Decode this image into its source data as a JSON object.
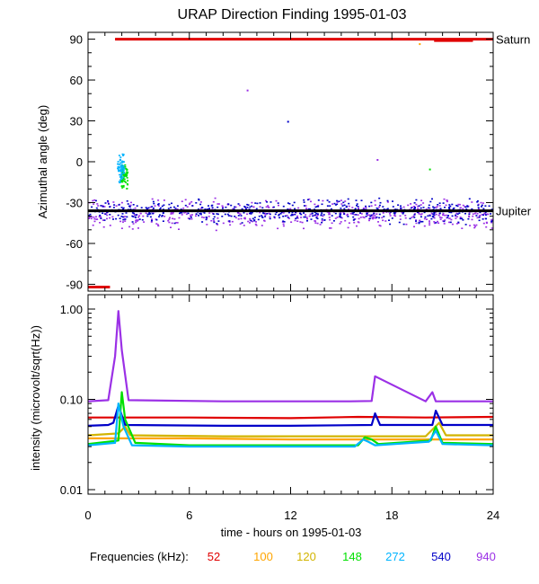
{
  "title": "URAP Direction Finding  1995-01-03",
  "colors": {
    "f52": "#e00000",
    "f100": "#ffa500",
    "f120": "#d2b400",
    "f148": "#00e000",
    "f272": "#00b4ff",
    "f540": "#0000c8",
    "f940": "#9b30e6"
  },
  "chart_data": [
    {
      "type": "scatter",
      "ylabel": "Azimuthal angle (deg)",
      "xlim": [
        0,
        24
      ],
      "ylim": [
        -95,
        95
      ],
      "yticks": [
        "90",
        "60",
        "30",
        "0",
        "-30",
        "-60",
        "-90"
      ],
      "reference_lines": [
        {
          "name": "Saturn",
          "y": 90,
          "x": [
            1.6,
            24
          ],
          "color": "#e00000"
        },
        {
          "name": "Jupiter",
          "y": -36,
          "x": [
            0,
            24
          ],
          "color": "#000000"
        }
      ],
      "segments": [
        {
          "y": -92,
          "x": [
            0,
            1.3
          ],
          "color": "#e00000"
        },
        {
          "y": 89,
          "x": [
            20.5,
            22.8
          ],
          "color": "#e00000"
        }
      ],
      "isolated_points": [
        {
          "x": 9.4,
          "y": 53,
          "series": "940"
        },
        {
          "x": 11.8,
          "y": 30,
          "series": "540"
        },
        {
          "x": 17.1,
          "y": 2,
          "series": "940"
        },
        {
          "x": 20.2,
          "y": -5,
          "series": "148"
        },
        {
          "x": 19.6,
          "y": 87,
          "series": "100"
        }
      ],
      "series": [
        {
          "name": "940",
          "band": {
            "x": [
              0,
              24
            ],
            "center": -38,
            "spread": 12
          }
        },
        {
          "name": "540",
          "band": {
            "x": [
              0,
              24
            ],
            "center": -36,
            "spread": 10
          }
        },
        {
          "name": "148",
          "band": {
            "x": [
              1.9,
              2.3
            ],
            "center": -10,
            "spread": 10
          }
        },
        {
          "name": "272",
          "band": {
            "x": [
              1.7,
              2.1
            ],
            "center": -5,
            "spread": 12
          }
        }
      ]
    },
    {
      "type": "line",
      "xlabel": "time - hours on 1995-01-03",
      "ylabel": "intensity (microvolt/sqrt(Hz))",
      "yscale": "log",
      "xlim": [
        0,
        24
      ],
      "ylim": [
        0.01,
        1.0
      ],
      "xticks": [
        "0",
        "6",
        "12",
        "18",
        "24"
      ],
      "yticks": [
        "1.00",
        "0.10",
        "0.01"
      ],
      "series": [
        {
          "name": "940",
          "x": [
            0,
            1.2,
            1.6,
            1.8,
            2.0,
            2.4,
            8,
            12,
            15.5,
            16.8,
            17.0,
            20,
            20.4,
            20.6,
            24
          ],
          "y": [
            0.095,
            0.098,
            0.3,
            0.95,
            0.35,
            0.098,
            0.095,
            0.095,
            0.095,
            0.096,
            0.18,
            0.095,
            0.12,
            0.095,
            0.095
          ]
        },
        {
          "name": "52",
          "x": [
            0,
            6,
            12,
            16,
            20,
            24
          ],
          "y": [
            0.063,
            0.063,
            0.062,
            0.064,
            0.063,
            0.064
          ]
        },
        {
          "name": "540",
          "x": [
            0,
            1.2,
            1.5,
            1.8,
            2.2,
            8,
            12,
            16.8,
            17.0,
            17.3,
            20.4,
            20.6,
            21.0,
            24
          ],
          "y": [
            0.051,
            0.052,
            0.055,
            0.085,
            0.052,
            0.051,
            0.051,
            0.052,
            0.07,
            0.052,
            0.052,
            0.075,
            0.052,
            0.052
          ]
        },
        {
          "name": "120",
          "x": [
            0,
            1.8,
            2.2,
            2.5,
            8,
            16,
            20,
            20.8,
            21.2,
            24
          ],
          "y": [
            0.04,
            0.042,
            0.05,
            0.04,
            0.039,
            0.039,
            0.039,
            0.055,
            0.04,
            0.04
          ]
        },
        {
          "name": "100",
          "x": [
            0,
            6,
            12,
            16,
            20,
            24
          ],
          "y": [
            0.037,
            0.037,
            0.036,
            0.036,
            0.036,
            0.036
          ]
        },
        {
          "name": "148",
          "x": [
            0,
            1.8,
            2.0,
            2.2,
            2.8,
            6,
            16,
            16.4,
            16.8,
            17.2,
            20.3,
            20.6,
            21.0,
            24
          ],
          "y": [
            0.032,
            0.035,
            0.12,
            0.06,
            0.033,
            0.031,
            0.031,
            0.038,
            0.036,
            0.032,
            0.035,
            0.05,
            0.033,
            0.032
          ]
        },
        {
          "name": "272",
          "x": [
            0,
            1.6,
            1.8,
            2.1,
            2.6,
            6,
            15.8,
            16.3,
            16.6,
            17.0,
            20.2,
            20.6,
            21.0,
            24
          ],
          "y": [
            0.031,
            0.033,
            0.09,
            0.05,
            0.031,
            0.03,
            0.03,
            0.036,
            0.034,
            0.031,
            0.034,
            0.045,
            0.032,
            0.031
          ]
        }
      ]
    }
  ],
  "legend": {
    "label": "Frequencies (kHz):",
    "items": [
      {
        "text": "52",
        "color": "#e00000"
      },
      {
        "text": "100",
        "color": "#ffa500"
      },
      {
        "text": "120",
        "color": "#d2b400"
      },
      {
        "text": "148",
        "color": "#00e000"
      },
      {
        "text": "272",
        "color": "#00b4ff"
      },
      {
        "text": "540",
        "color": "#0000c8"
      },
      {
        "text": "940",
        "color": "#9b30e6"
      }
    ]
  }
}
